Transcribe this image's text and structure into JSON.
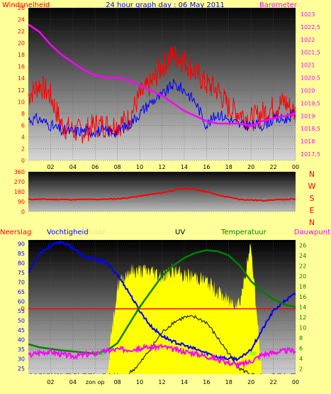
{
  "header": {
    "title": "24 hour graph day : 06 May 2011",
    "left_label": "Windsnelheid",
    "right_label": "Barometer"
  },
  "colors": {
    "background": "#ffff99",
    "wind": "#ff0000",
    "gust": "#0000ff",
    "barometer": "#ff00ff",
    "humidity": "#0000ff",
    "temperature": "#008000",
    "dewpoint": "#ff00ff",
    "solar": "#ffff00",
    "uv": "#000000",
    "zero_line": "#ff0000",
    "wind_direction": "#ff0000"
  },
  "chart_data": [
    {
      "type": "line",
      "name": "wind-barometer",
      "left_axis_ticks": [
        "0",
        "2",
        "4",
        "6",
        "8",
        "10",
        "12",
        "14",
        "16",
        "18",
        "20",
        "22",
        "24",
        "26"
      ],
      "right_axis_ticks": [
        "1017,5",
        "1018",
        "1018,5",
        "1019",
        "1019,5",
        "1020",
        "1020,5",
        "1021",
        "1021,5",
        "1022",
        "1022,5",
        "1023"
      ],
      "x_ticks": [
        "02",
        "04",
        "06",
        "08",
        "10",
        "12",
        "14",
        "16",
        "18",
        "20",
        "22",
        "00"
      ],
      "ylim_left": [
        0,
        26
      ],
      "ylim_right": [
        1017.25,
        1023.25
      ],
      "x": [
        0,
        1,
        2,
        3,
        4,
        5,
        6,
        7,
        8,
        9,
        10,
        11,
        12,
        13,
        14,
        15,
        16,
        17,
        18,
        19,
        20,
        21,
        22,
        23,
        24
      ],
      "series": [
        {
          "name": "Windsnelheid",
          "axis": "left",
          "values": [
            11,
            13,
            11,
            6,
            5,
            5,
            6,
            6,
            6,
            7,
            11,
            13,
            16,
            18,
            17,
            15,
            13,
            12,
            9,
            8,
            7,
            8,
            9,
            10,
            8
          ]
        },
        {
          "name": "Windvlaag",
          "axis": "left",
          "values": [
            7,
            7,
            6,
            5,
            5,
            5,
            5,
            5,
            5,
            6,
            8,
            10,
            11,
            13,
            12,
            10,
            6,
            8,
            7,
            6,
            6,
            6,
            7,
            7,
            8
          ]
        },
        {
          "name": "Barometer",
          "axis": "right",
          "values": [
            1022.6,
            1022.3,
            1021.8,
            1021.4,
            1021.1,
            1020.8,
            1020.6,
            1020.5,
            1020.5,
            1020.4,
            1020.2,
            1020.0,
            1019.8,
            1019.5,
            1019.2,
            1019.0,
            1018.8,
            1018.7,
            1018.7,
            1018.7,
            1018.6,
            1018.8,
            1018.9,
            1019.0,
            1019.1
          ]
        }
      ]
    },
    {
      "type": "line",
      "name": "wind-direction",
      "left_axis_ticks": [
        "0",
        "90",
        "180",
        "270",
        "360"
      ],
      "right_labels": [
        "N",
        "W",
        "S",
        "E",
        "N"
      ],
      "ylim": [
        0,
        360
      ],
      "x": [
        0,
        1,
        2,
        3,
        4,
        5,
        6,
        7,
        8,
        9,
        10,
        11,
        12,
        13,
        14,
        15,
        16,
        17,
        18,
        19,
        20,
        21,
        22,
        23,
        24
      ],
      "series": [
        {
          "name": "Windrichting",
          "values": [
            110,
            112,
            110,
            110,
            108,
            110,
            110,
            112,
            115,
            125,
            140,
            155,
            170,
            190,
            210,
            200,
            180,
            150,
            130,
            110,
            105,
            100,
            105,
            110,
            112
          ]
        }
      ]
    },
    {
      "type": "line",
      "name": "humidity-temperature",
      "legend": [
        "Neerslag",
        "Vochtigheid",
        "Solar",
        "UV",
        "Temperatuur",
        "Dauwpunt"
      ],
      "left_axis_ticks": [
        "25",
        "30",
        "35",
        "40",
        "45",
        "50",
        "55",
        "60",
        "65",
        "70",
        "75",
        "80",
        "85",
        "90"
      ],
      "right_axis_ticks": [
        "2",
        "4",
        "6",
        "8",
        "10",
        "12",
        "14",
        "16",
        "18",
        "20",
        "22",
        "24",
        "26"
      ],
      "zero_label": "0",
      "x_ticks": [
        "02",
        "04",
        "zon op",
        "08",
        "10",
        "12",
        "14",
        "16",
        "18",
        "20",
        "22",
        "00"
      ],
      "ylim_left": [
        22,
        92
      ],
      "ylim_right": [
        1,
        27
      ],
      "x": [
        0,
        1,
        2,
        3,
        4,
        5,
        6,
        7,
        8,
        9,
        10,
        11,
        12,
        13,
        14,
        15,
        16,
        17,
        18,
        19,
        20,
        21,
        22,
        23,
        24
      ],
      "series": [
        {
          "name": "Vochtigheid",
          "axis": "left",
          "values": [
            75,
            85,
            89,
            91,
            88,
            83,
            82,
            80,
            74,
            65,
            55,
            47,
            42,
            39,
            37,
            35,
            33,
            31,
            30,
            30,
            35,
            45,
            55,
            60,
            64
          ]
        },
        {
          "name": "Temperatuur",
          "axis": "right",
          "values": [
            6.8,
            6.2,
            5.9,
            5.6,
            5.4,
            5.2,
            5.0,
            5.5,
            7.0,
            10.5,
            14.0,
            17.0,
            20.0,
            22.0,
            23.5,
            24.5,
            25.0,
            24.8,
            24.0,
            22.0,
            19.0,
            17.0,
            15.5,
            14.5,
            14.0
          ]
        },
        {
          "name": "Dauwpunt",
          "axis": "right",
          "values": [
            4.6,
            5.2,
            5.4,
            4.8,
            4.5,
            4.8,
            5.0,
            5.5,
            5.8,
            5.8,
            6.0,
            6.2,
            6.4,
            5.8,
            5.4,
            5.0,
            4.5,
            3.8,
            3.2,
            2.8,
            3.5,
            4.8,
            5.2,
            5.5,
            5.6
          ]
        },
        {
          "name": "Solar",
          "axis": "right",
          "values": [
            0,
            0,
            0,
            0,
            0,
            0,
            0,
            0,
            18,
            21,
            21,
            21,
            20,
            21,
            20,
            20,
            19,
            17,
            15,
            15,
            26,
            0,
            0,
            0,
            0
          ]
        },
        {
          "name": "UV",
          "axis": "right",
          "values": [
            0,
            0,
            0,
            0,
            0,
            0,
            0,
            0,
            0,
            1,
            3,
            6,
            9,
            11,
            12,
            12,
            11,
            8,
            5,
            2,
            1,
            0,
            0,
            0,
            0
          ]
        }
      ],
      "annotations": [
        "op",
        "op"
      ]
    }
  ]
}
